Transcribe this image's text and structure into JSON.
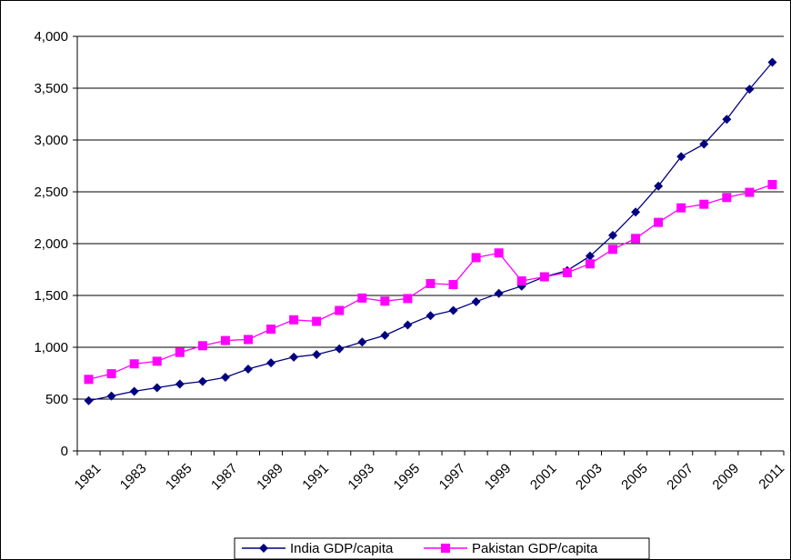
{
  "chart_data": {
    "type": "line",
    "title": "",
    "xlabel": "",
    "ylabel": "",
    "x": [
      1981,
      1982,
      1983,
      1984,
      1985,
      1986,
      1987,
      1988,
      1989,
      1990,
      1991,
      1992,
      1993,
      1994,
      1995,
      1996,
      1997,
      1998,
      1999,
      2000,
      2001,
      2002,
      2003,
      2004,
      2005,
      2006,
      2007,
      2008,
      2009,
      2010,
      2011
    ],
    "x_tick_labels": [
      "1981",
      "1983",
      "1985",
      "1987",
      "1989",
      "1991",
      "1993",
      "1995",
      "1997",
      "1999",
      "2001",
      "2003",
      "2005",
      "2007",
      "2009",
      "2011"
    ],
    "y_tick_labels": [
      "0",
      "500",
      "1,000",
      "1,500",
      "2,000",
      "2,500",
      "3,000",
      "3,500",
      "4,000"
    ],
    "ylim": [
      0,
      4000
    ],
    "y_tick_step": 500,
    "grid": "horizontal",
    "legend_position": "bottom",
    "series": [
      {
        "name": "India GDP/capita",
        "color": "#000080",
        "marker": "diamond",
        "values": [
          485,
          530,
          575,
          610,
          645,
          670,
          710,
          790,
          850,
          905,
          930,
          985,
          1050,
          1115,
          1215,
          1305,
          1355,
          1440,
          1520,
          1590,
          1680,
          1740,
          1880,
          2080,
          2305,
          2555,
          2840,
          2960,
          3200,
          3490,
          3750
        ]
      },
      {
        "name": "Pakistan GDP/capita",
        "color": "#ff00ff",
        "marker": "square",
        "values": [
          690,
          745,
          840,
          865,
          950,
          1015,
          1065,
          1075,
          1175,
          1265,
          1250,
          1355,
          1475,
          1445,
          1470,
          1615,
          1605,
          1865,
          1910,
          1640,
          1680,
          1720,
          1805,
          1945,
          2050,
          2205,
          2345,
          2380,
          2445,
          2495,
          2570
        ]
      }
    ]
  }
}
